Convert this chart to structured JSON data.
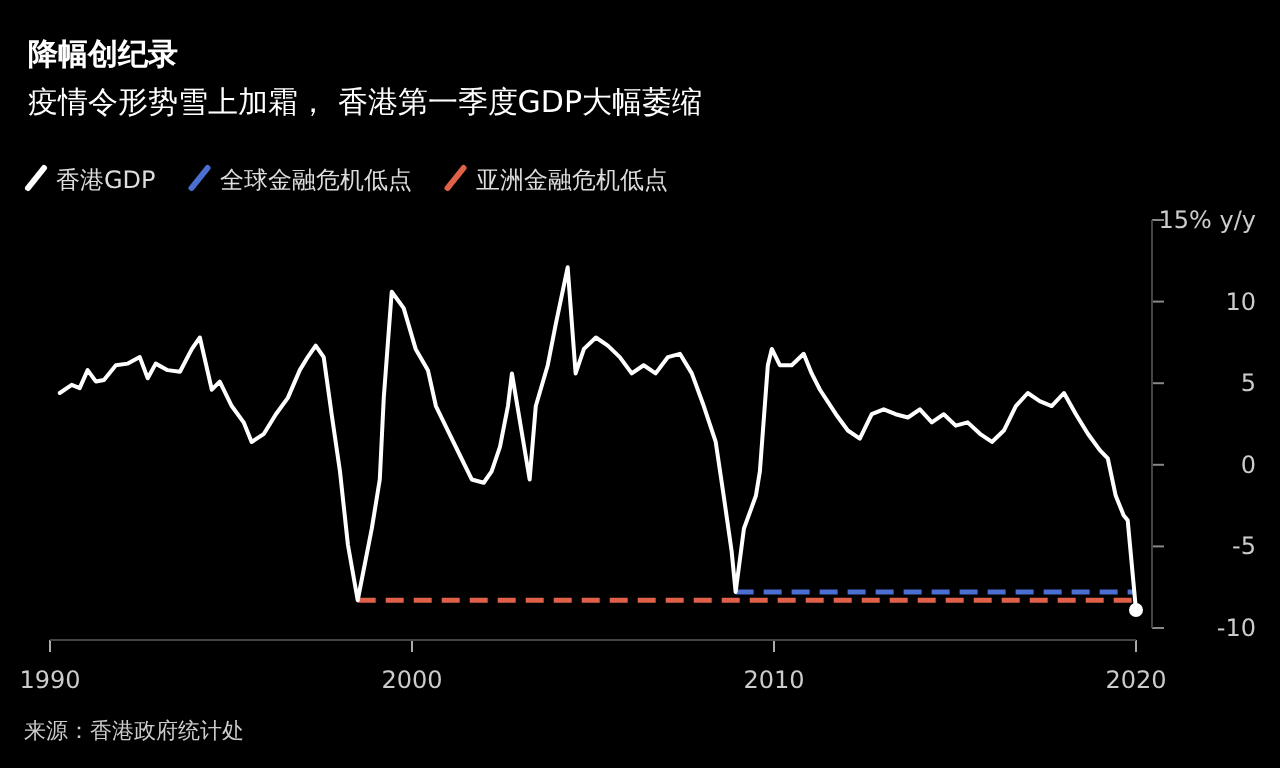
{
  "chart_data": {
    "type": "line",
    "title": "降幅创纪录",
    "subtitle": "疫情令形势雪上加霜， 香港第一季度GDP大幅萎缩",
    "legend": "top left",
    "xlim": [
      1990,
      2020
    ],
    "xticks": [
      1990,
      2000,
      2010,
      2020
    ],
    "ylim": [
      -10,
      15
    ],
    "yticks": [
      {
        "value": 15,
        "label": "15% y/y"
      },
      10,
      5,
      0,
      -5,
      -10
    ],
    "annotations": [
      "来源：香港政府统计处"
    ],
    "series": [
      {
        "name": "香港GDP",
        "color": "#ffffff",
        "line_style": "solid",
        "x": [
          1990.27,
          1990.6,
          1990.82,
          1991.04,
          1991.27,
          1991.49,
          1991.82,
          1992.15,
          1992.48,
          1992.7,
          1992.92,
          1993.25,
          1993.59,
          1993.92,
          1994.14,
          1994.47,
          1994.69,
          1995.02,
          1995.35,
          1995.57,
          1995.91,
          1996.24,
          1996.57,
          1996.9,
          1997.12,
          1997.34,
          1997.56,
          1997.78,
          1998.01,
          1998.23,
          1998.5,
          1998.89,
          1999.11,
          1999.22,
          1999.44,
          1999.77,
          2000.1,
          2000.44,
          2000.66,
          2000.99,
          2001.32,
          2001.65,
          2001.98,
          2002.2,
          2002.43,
          2002.65,
          2002.76,
          2003.25,
          2003.42,
          2003.75,
          2003.97,
          2004.3,
          2004.52,
          2004.75,
          2005.08,
          2005.41,
          2005.74,
          2006.07,
          2006.4,
          2006.73,
          2007.07,
          2007.4,
          2007.73,
          2008.06,
          2008.39,
          2008.61,
          2008.83,
          2008.94,
          2009.17,
          2009.5,
          2009.61,
          2009.83,
          2009.94,
          2010.16,
          2010.49,
          2010.82,
          2011.04,
          2011.27,
          2011.71,
          2012.04,
          2012.37,
          2012.7,
          2013.03,
          2013.36,
          2013.7,
          2014.03,
          2014.36,
          2014.69,
          2015.02,
          2015.35,
          2015.69,
          2016.02,
          2016.35,
          2016.68,
          2017.01,
          2017.34,
          2017.67,
          2018.01,
          2018.34,
          2018.67,
          2019.0,
          2019.22,
          2019.44,
          2019.66,
          2019.77,
          2020.0
        ],
        "values": [
          4.4,
          4.9,
          4.7,
          5.8,
          5.1,
          5.2,
          6.1,
          6.2,
          6.6,
          5.3,
          6.2,
          5.8,
          5.7,
          7.1,
          7.8,
          4.6,
          5.1,
          3.6,
          2.6,
          1.4,
          1.9,
          3.1,
          4.1,
          5.8,
          6.6,
          7.3,
          6.6,
          3.1,
          -0.4,
          -4.9,
          -8.3,
          -3.9,
          -0.9,
          4.1,
          10.6,
          9.6,
          7.1,
          5.8,
          3.6,
          2.1,
          0.6,
          -0.9,
          -1.1,
          -0.4,
          1.1,
          3.6,
          5.6,
          -0.9,
          3.6,
          6.1,
          8.6,
          12.1,
          5.6,
          7.1,
          7.8,
          7.3,
          6.6,
          5.6,
          6.1,
          5.6,
          6.6,
          6.8,
          5.6,
          3.6,
          1.4,
          -1.9,
          -5.3,
          -7.8,
          -3.9,
          -1.9,
          -0.4,
          6.1,
          7.1,
          6.1,
          6.1,
          6.8,
          5.6,
          4.6,
          3.1,
          2.1,
          1.6,
          3.1,
          3.4,
          3.1,
          2.9,
          3.4,
          2.6,
          3.1,
          2.4,
          2.6,
          1.9,
          1.4,
          2.1,
          3.6,
          4.4,
          3.9,
          3.6,
          4.4,
          3.1,
          1.9,
          0.9,
          0.4,
          -1.9,
          -3.1,
          -3.4,
          -8.9
        ]
      },
      {
        "name": "全球金融危机低点",
        "color": "#4a6fd0",
        "line_style": "dashed",
        "x": [
          2008.94,
          2020.0
        ],
        "values": [
          -7.8,
          -7.8
        ]
      },
      {
        "name": "亚洲金融危机低点",
        "color": "#e0604a",
        "line_style": "dashed",
        "x": [
          1998.5,
          2020.0
        ],
        "values": [
          -8.3,
          -8.3
        ]
      },
      {
        "type": "scatter",
        "color": "#ffffff",
        "marker": "circle",
        "x": [
          2020.0
        ],
        "values": [
          -8.9
        ]
      }
    ]
  }
}
